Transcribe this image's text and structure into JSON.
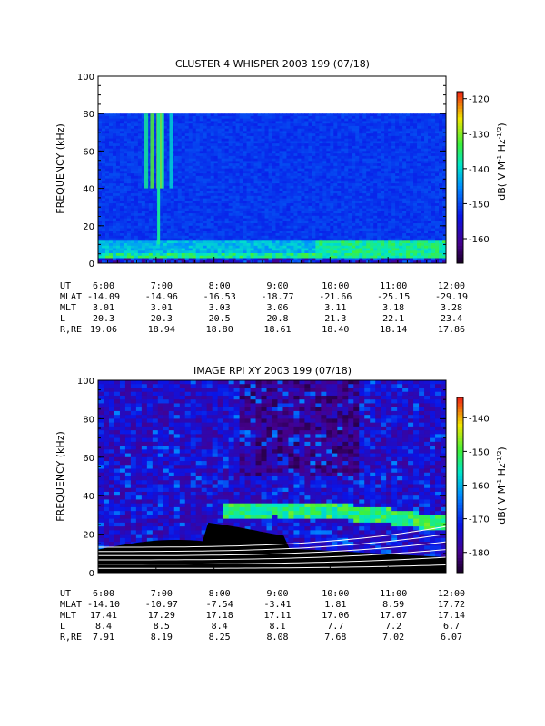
{
  "chart_data": [
    {
      "type": "heatmap",
      "title": "CLUSTER 4 WHISPER 2003 199 (07/18)",
      "ylabel": "FREQUENCY (kHz)",
      "ylim": [
        0,
        100
      ],
      "yticks": [
        "0",
        "20",
        "40",
        "60",
        "80",
        "100"
      ],
      "y_tick_values": [
        0,
        20,
        40,
        60,
        80,
        100
      ],
      "x_tick_labels": [
        "6:00",
        "7:00",
        "8:00",
        "9:00",
        "10:00",
        "11:00",
        "12:00"
      ],
      "data_fmax": 80,
      "colorbar": {
        "label": "dB( V M⁻¹ Hz⁻¹ᐟ²)",
        "label_main": "dB( V M",
        "label_sup1": "-1",
        "label_mid": " Hz",
        "label_sup2": "-1/2",
        "label_end": ")",
        "ticks": [
          "-120",
          "-130",
          "-140",
          "-150",
          "-160"
        ],
        "tick_values": [
          -120,
          -130,
          -140,
          -150,
          -160
        ],
        "range": [
          -167,
          -118
        ]
      },
      "ephemeris": {
        "row_labels": [
          "UT",
          "MLAT",
          "MLT",
          "L",
          "R,RE"
        ],
        "columns": [
          [
            "6:00",
            "-14.09",
            "3.01",
            "20.3",
            "19.06"
          ],
          [
            "7:00",
            "-14.96",
            "3.01",
            "20.3",
            "18.94"
          ],
          [
            "8:00",
            "-16.53",
            "3.03",
            "20.5",
            "18.80"
          ],
          [
            "9:00",
            "-18.77",
            "3.06",
            "20.8",
            "18.61"
          ],
          [
            "10:00",
            "-21.66",
            "3.11",
            "21.3",
            "18.40"
          ],
          [
            "11:00",
            "-25.15",
            "3.18",
            "22.1",
            "18.14"
          ],
          [
            "12:00",
            "-29.19",
            "3.28",
            "23.4",
            "17.86"
          ]
        ]
      }
    },
    {
      "type": "heatmap",
      "title": "IMAGE RPI XY 2003 199 (07/18)",
      "ylabel": "FREQUENCY (kHz)",
      "ylim": [
        0,
        100
      ],
      "yticks": [
        "0",
        "20",
        "40",
        "60",
        "80",
        "100"
      ],
      "y_tick_values": [
        0,
        20,
        40,
        60,
        80,
        100
      ],
      "x_tick_labels": [
        "6:00",
        "7:00",
        "8:00",
        "9:00",
        "10:00",
        "11:00",
        "12:00"
      ],
      "colorbar": {
        "label_main": "dB( V M",
        "label_sup1": "-1",
        "label_mid": " Hz",
        "label_sup2": "-1/2",
        "label_end": ")",
        "ticks": [
          "-140",
          "-150",
          "-160",
          "-170",
          "-180"
        ],
        "tick_values": [
          -140,
          -150,
          -160,
          -170,
          -180
        ],
        "range": [
          -186,
          -134
        ]
      },
      "ephemeris": {
        "row_labels": [
          "UT",
          "MLAT",
          "MLT",
          "L",
          "R,RE"
        ],
        "columns": [
          [
            "6:00",
            "-14.10",
            "17.41",
            "8.4",
            "7.91"
          ],
          [
            "7:00",
            "-10.97",
            "17.29",
            "8.5",
            "8.19"
          ],
          [
            "8:00",
            "-7.54",
            "17.18",
            "8.4",
            "8.25"
          ],
          [
            "9:00",
            "-3.41",
            "17.11",
            "8.1",
            "8.08"
          ],
          [
            "10:00",
            "1.81",
            "17.06",
            "7.7",
            "7.68"
          ],
          [
            "11:00",
            "8.59",
            "17.07",
            "7.2",
            "7.02"
          ],
          [
            "12:00",
            "17.72",
            "17.14",
            "6.7",
            "6.07"
          ]
        ]
      }
    }
  ]
}
